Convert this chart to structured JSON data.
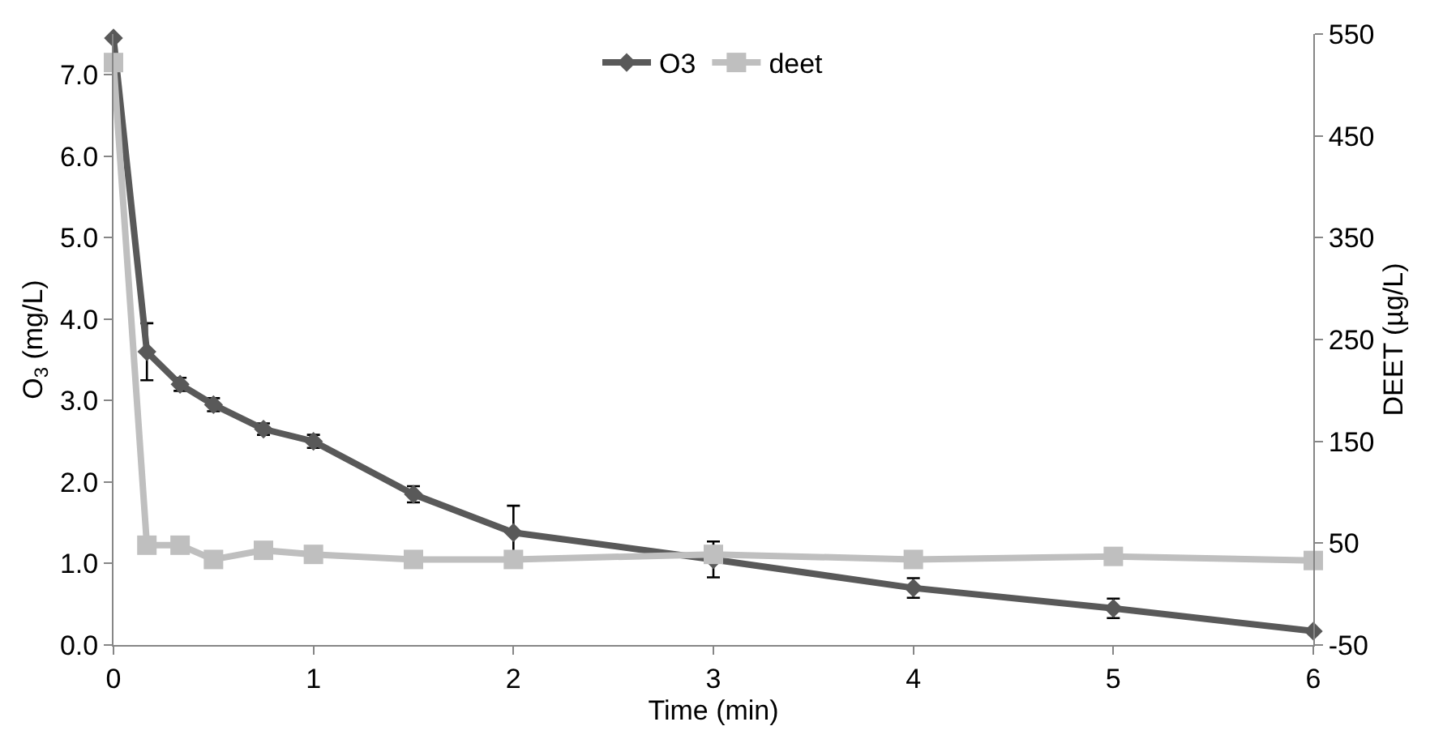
{
  "chart_data": {
    "type": "line",
    "xlabel": "Time (min)",
    "ylabel": "O$_{3}$ (mg/L)",
    "y2label": "DEET (µg/L)",
    "x": [
      0,
      0.167,
      0.333,
      0.5,
      0.75,
      1,
      1.5,
      2,
      3,
      4,
      5,
      6
    ],
    "series": [
      {
        "name": "O3",
        "color": "#595959",
        "marker": "diamond",
        "values": [
          7.45,
          3.6,
          3.2,
          2.95,
          2.65,
          2.5,
          1.85,
          1.38,
          1.05,
          0.7,
          0.45,
          0.17
        ],
        "errors": [
          null,
          0.35,
          0.08,
          0.08,
          0.07,
          0.08,
          0.1,
          0.33,
          0.22,
          0.12,
          0.12,
          null
        ]
      },
      {
        "name": "deet",
        "color": "#bfbfbf",
        "marker": "square",
        "axis": "y2",
        "values": [
          522,
          48,
          48,
          34,
          43,
          39,
          34,
          34,
          39,
          34,
          37,
          33
        ]
      }
    ],
    "xlim": [
      0,
      6
    ],
    "xticks": [
      0,
      1,
      2,
      3,
      4,
      5,
      6
    ],
    "ylim": [
      0,
      7.5
    ],
    "yticks": [
      {
        "value": 0,
        "label": "0.0"
      },
      {
        "value": 1,
        "label": "1.0"
      },
      {
        "value": 2,
        "label": "2.0"
      },
      {
        "value": 3,
        "label": "3.0"
      },
      {
        "value": 4,
        "label": "4.0"
      },
      {
        "value": 5,
        "label": "5.0"
      },
      {
        "value": 6,
        "label": "6.0"
      },
      {
        "value": 7,
        "label": "7.0"
      }
    ],
    "y2lim": [
      -50,
      550
    ],
    "y2ticks": [
      -50,
      50,
      150,
      250,
      350,
      450,
      550
    ],
    "grid": false,
    "legend": "top",
    "line_style": "solid"
  }
}
